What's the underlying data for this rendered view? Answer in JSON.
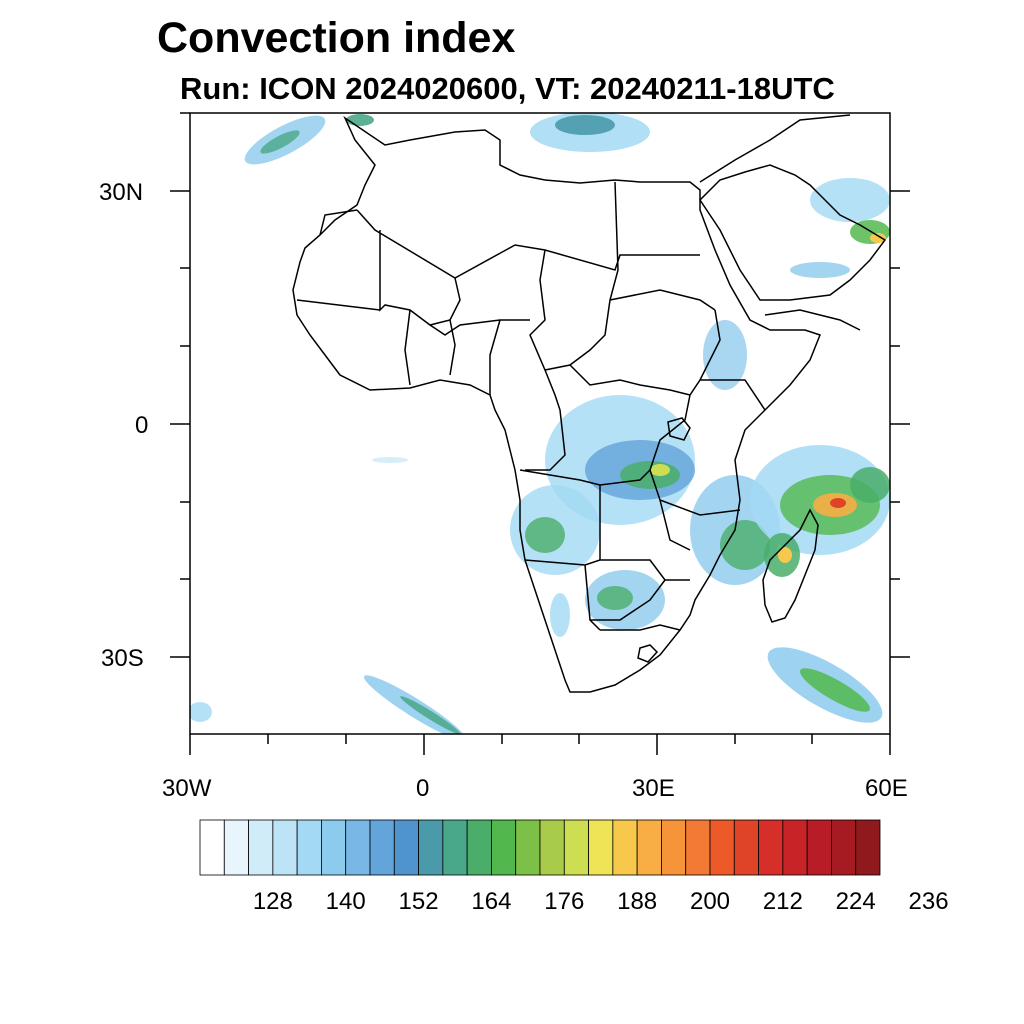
{
  "title": "Convection index",
  "subtitle": "Run: ICON 2024020600,  VT: 20240211-18UTC",
  "map": {
    "projection": "cylindrical equidistant",
    "lon_range": [
      -30,
      60
    ],
    "lat_range": [
      -40,
      40
    ],
    "lon_ticks": [
      {
        "value": -30,
        "label": "30W"
      },
      {
        "value": 0,
        "label": "0"
      },
      {
        "value": 30,
        "label": "30E"
      },
      {
        "value": 60,
        "label": "60E"
      }
    ],
    "lat_ticks": [
      {
        "value": 30,
        "label": "30N"
      },
      {
        "value": 0,
        "label": "0"
      },
      {
        "value": -30,
        "label": "30S"
      }
    ],
    "land_color": "#ffffff",
    "ocean_color": "#ffffff",
    "coastline_color": "#000000"
  },
  "colorbar": {
    "colors": [
      "#ffffff",
      "#e8f5fc",
      "#d0ecf8",
      "#bde4f6",
      "#a3d9f4",
      "#8ccaee",
      "#79b8e6",
      "#63a4da",
      "#4f94cd",
      "#4a9aaa",
      "#4aa88a",
      "#4aae6a",
      "#52b84e",
      "#7cc048",
      "#a8cc4a",
      "#cede52",
      "#eee456",
      "#f7c84c",
      "#f8ae44",
      "#f6943a",
      "#f27a34",
      "#ec5a2a",
      "#e04428",
      "#d62e28",
      "#c82428",
      "#b81c26",
      "#a61a22",
      "#8e1a1e"
    ],
    "tick_labels": [
      "128",
      "140",
      "152",
      "164",
      "176",
      "188",
      "200",
      "212",
      "224",
      "236"
    ]
  }
}
